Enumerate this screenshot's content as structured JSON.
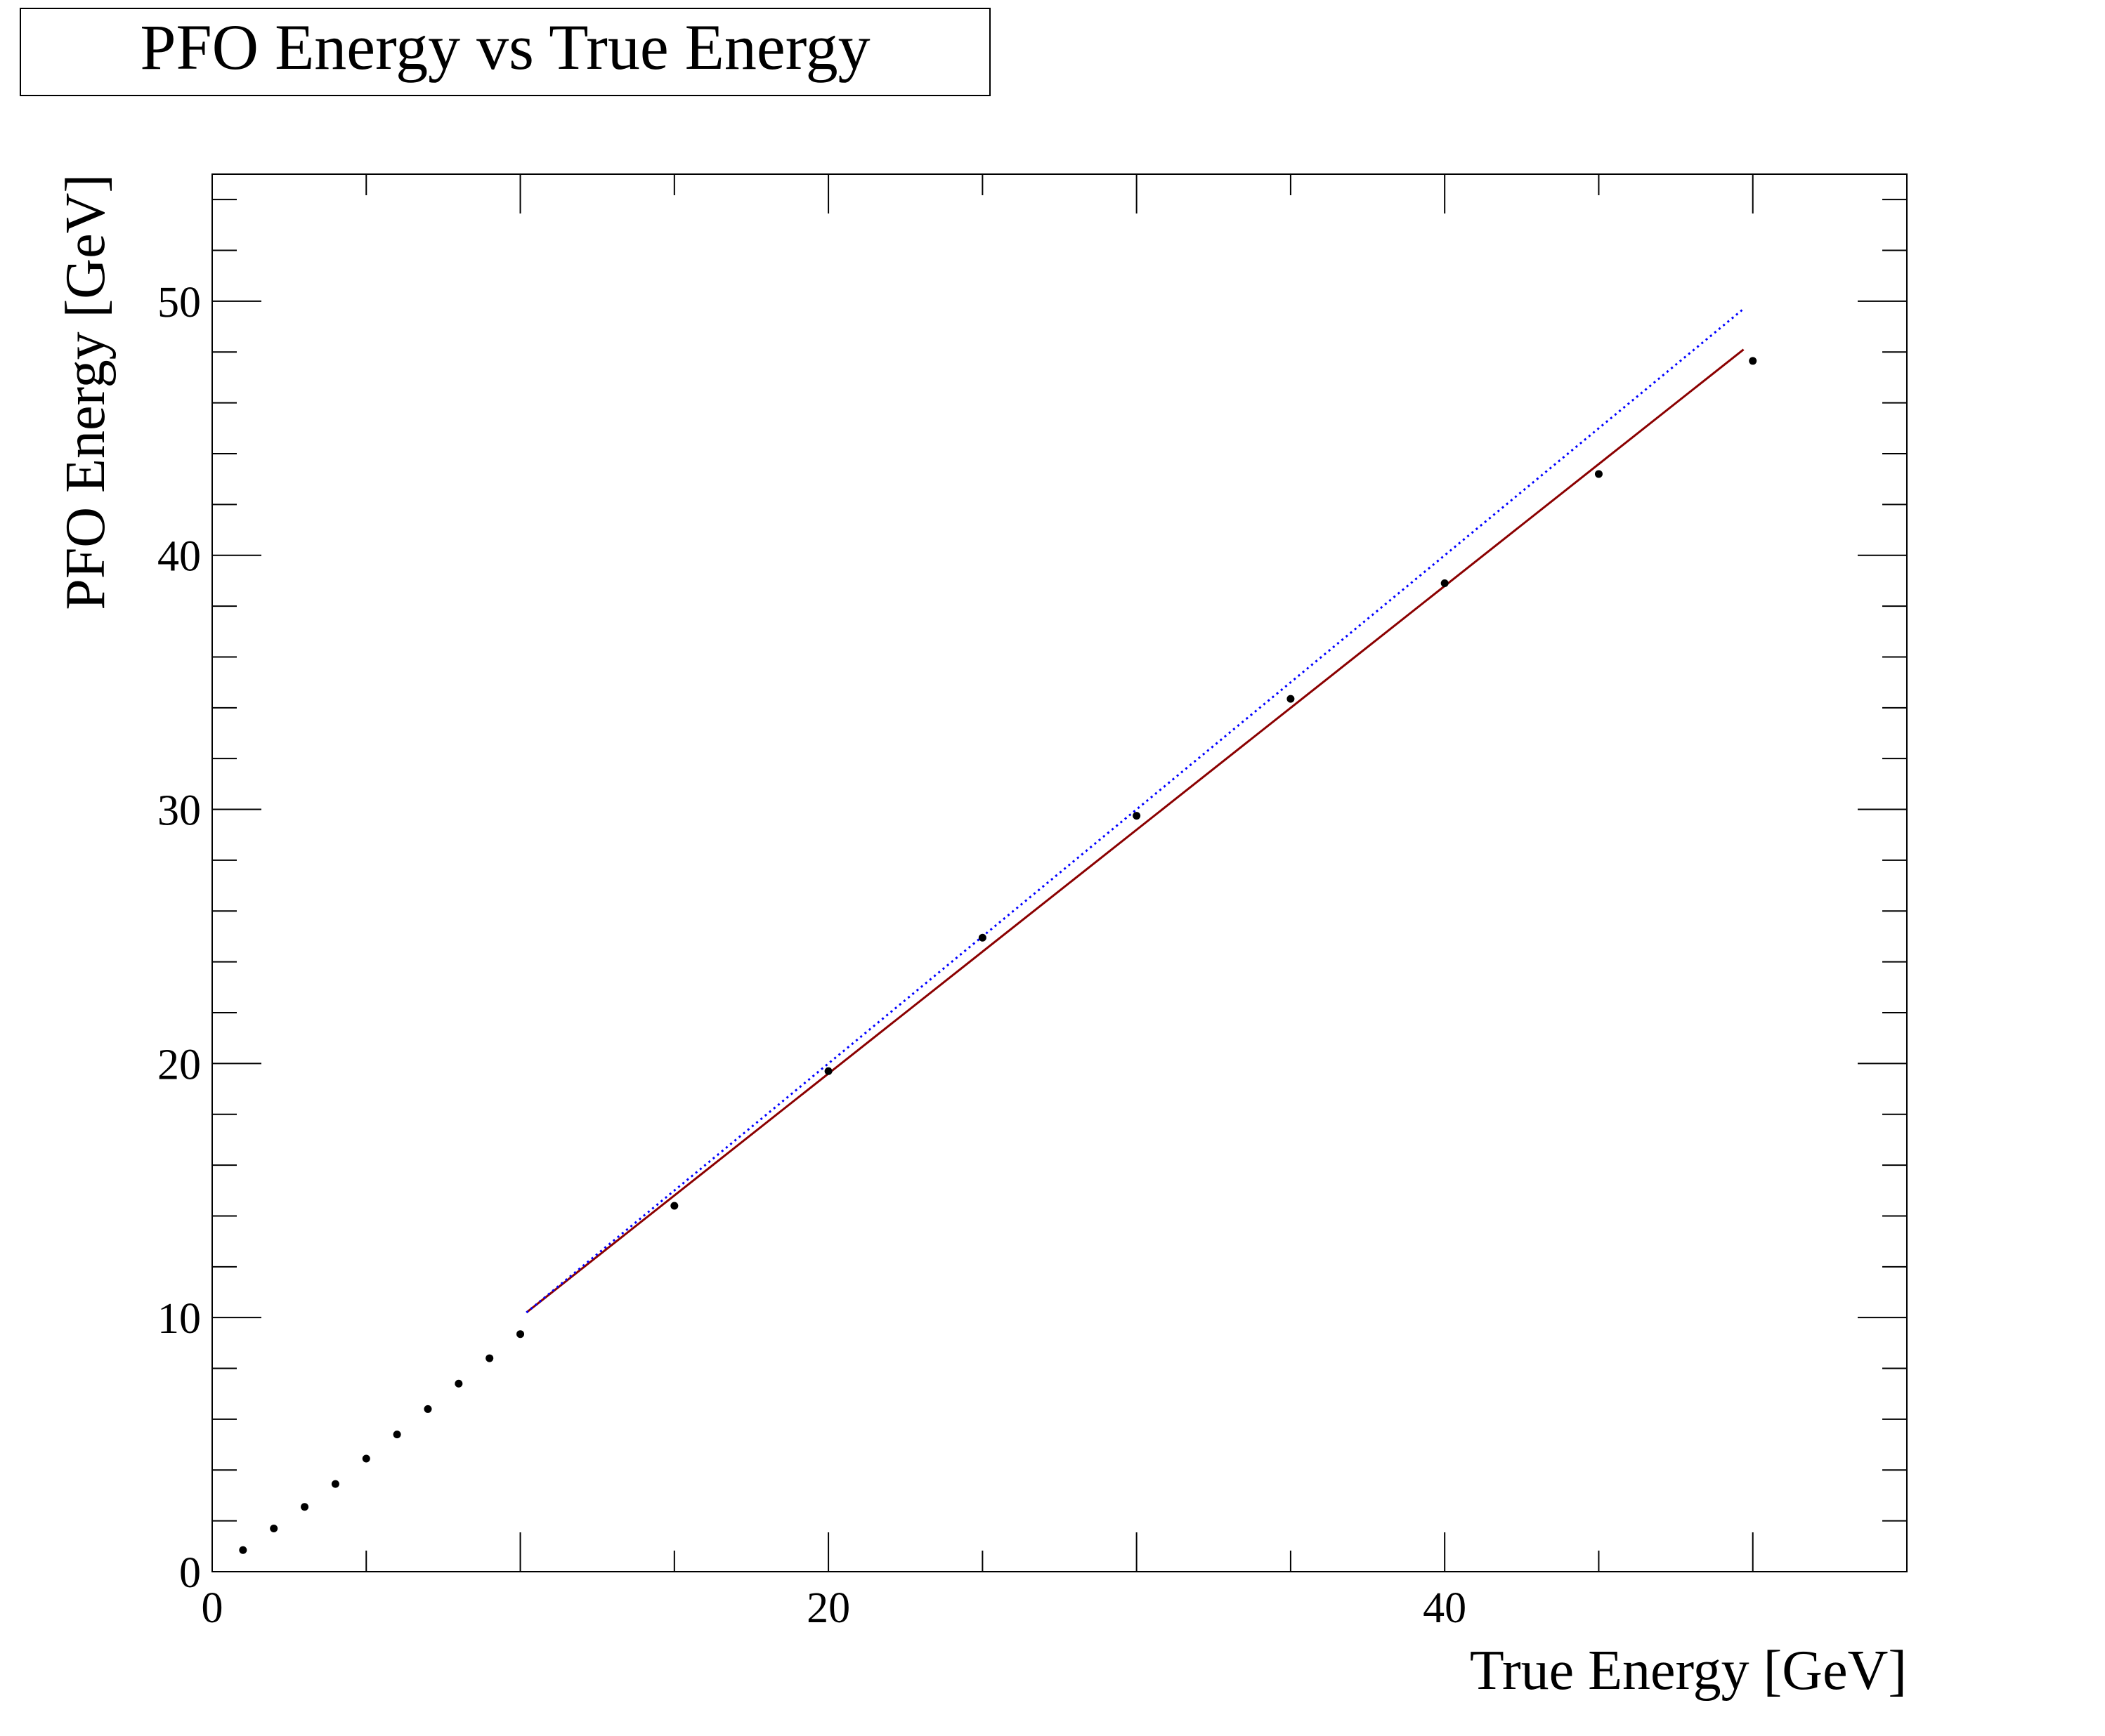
{
  "chart_data": {
    "type": "scatter",
    "title": "PFO Energy vs True Energy",
    "xlabel": "True Energy [GeV]",
    "ylabel": "PFO Energy [GeV]",
    "xlim": [
      0,
      55
    ],
    "ylim": [
      0,
      55
    ],
    "x_ticks": [
      0,
      20,
      40
    ],
    "y_ticks": [
      0,
      10,
      20,
      30,
      40,
      50
    ],
    "grid": false,
    "series": [
      {
        "style": "markers",
        "color": "#000000",
        "x": [
          1,
          2,
          3,
          4,
          5,
          6,
          7,
          8,
          9,
          10,
          15,
          20,
          25,
          30,
          35,
          40,
          45,
          50
        ],
        "y": [
          0.85,
          1.7,
          2.55,
          3.45,
          4.45,
          5.4,
          6.4,
          7.4,
          8.4,
          9.35,
          14.4,
          19.7,
          24.95,
          29.75,
          34.35,
          38.9,
          43.2,
          47.65
        ]
      },
      {
        "style": "line",
        "color": "#8b0000",
        "x": [
          10.2,
          49.7
        ],
        "y": [
          10.2,
          48.1
        ]
      },
      {
        "style": "dotted-line",
        "color": "#0000ff",
        "x": [
          10.2,
          49.7
        ],
        "y": [
          10.2,
          49.7
        ]
      }
    ]
  }
}
